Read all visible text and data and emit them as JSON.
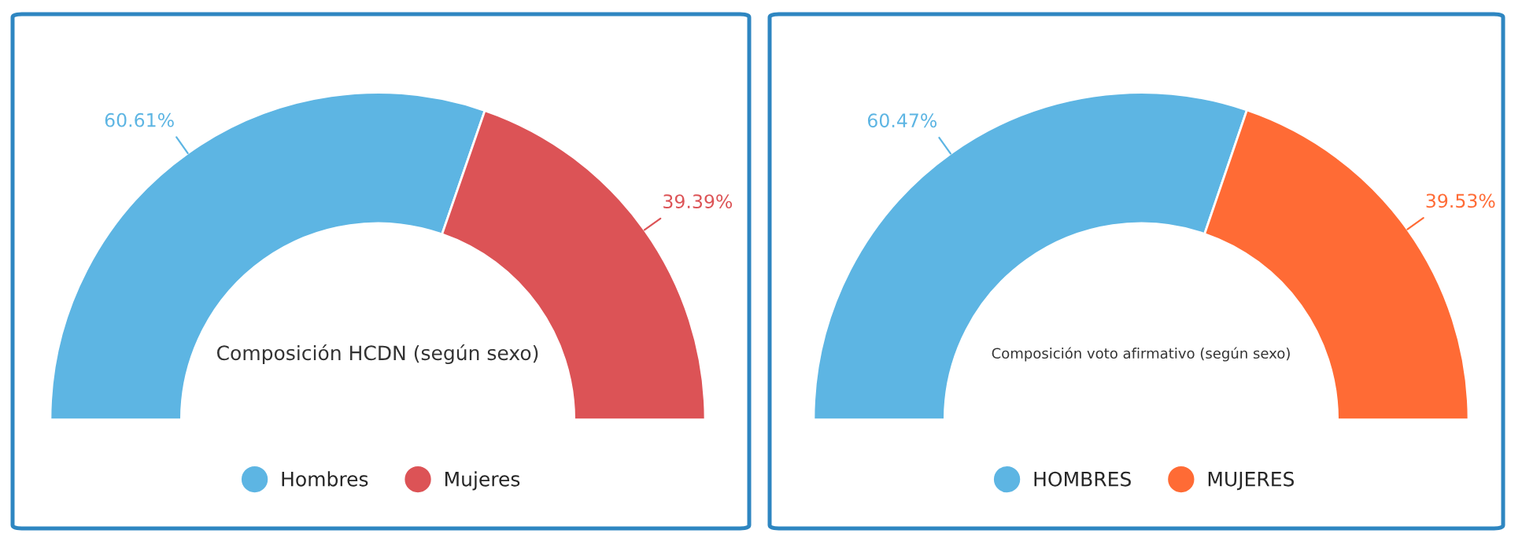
{
  "chart_data": [
    {
      "type": "donut",
      "title": "Composición HCDN (según sexo)",
      "categories": [
        "Hombres",
        "Mujeres"
      ],
      "values": [
        60.61,
        39.39
      ],
      "colors": [
        "#5db5e3",
        "#dc5356"
      ],
      "value_labels": [
        "60.61%",
        "39.39%"
      ],
      "legend": "bottom"
    },
    {
      "type": "donut",
      "title": "Composición voto afirmativo (según sexo)",
      "categories": [
        "HOMBRES",
        "MUJERES"
      ],
      "values": [
        60.47,
        39.53
      ],
      "colors": [
        "#5db5e3",
        "#ff6b35"
      ],
      "value_labels": [
        "60.47%",
        "39.53%"
      ],
      "legend": "bottom"
    }
  ]
}
